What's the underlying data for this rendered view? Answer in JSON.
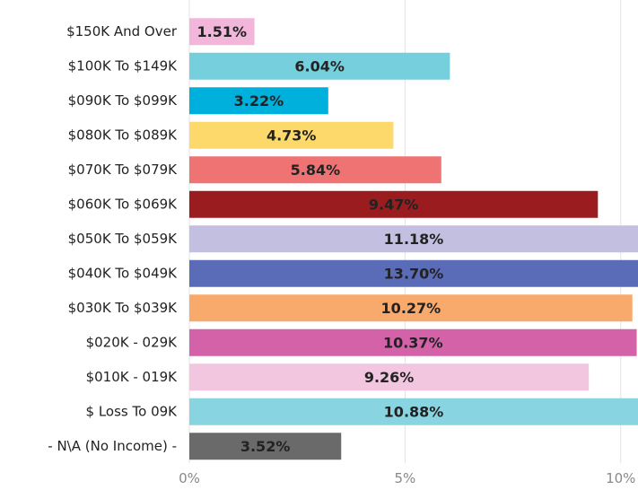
{
  "chart_data": {
    "type": "bar",
    "orientation": "horizontal",
    "categories": [
      "$150K And Over",
      "$100K To $149K",
      "$090K To $099K",
      "$080K To $089K",
      "$070K To $079K",
      "$060K To $069K",
      "$050K To $059K",
      "$040K To $049K",
      "$030K To $039K",
      "$020K - 029K",
      "$010K - 019K",
      "$ Loss To 09K",
      "- N\\A (No Income) -"
    ],
    "values": [
      1.51,
      6.04,
      3.22,
      4.73,
      5.84,
      9.47,
      11.18,
      13.7,
      10.27,
      10.37,
      9.26,
      10.88,
      3.52
    ],
    "value_labels": [
      "1.51%",
      "6.04%",
      "3.22%",
      "4.73%",
      "5.84%",
      "9.47%",
      "11.18%",
      "13.70%",
      "10.27%",
      "10.37%",
      "9.26%",
      "10.88%",
      "3.52%"
    ],
    "colors": [
      "#f1b6da",
      "#76cfdc",
      "#00b0dc",
      "#fdd96b",
      "#f07373",
      "#9b1c1f",
      "#c3bfe0",
      "#5a6bb8",
      "#f8a96c",
      "#d362a8",
      "#f3c6e0",
      "#89d4e1",
      "#6a6a6a"
    ],
    "xlim": [
      0,
      10.4
    ],
    "xticks": [
      {
        "value": 0,
        "label": "0%"
      },
      {
        "value": 5,
        "label": "5%"
      },
      {
        "value": 10,
        "label": "10%"
      }
    ],
    "grid": true
  }
}
